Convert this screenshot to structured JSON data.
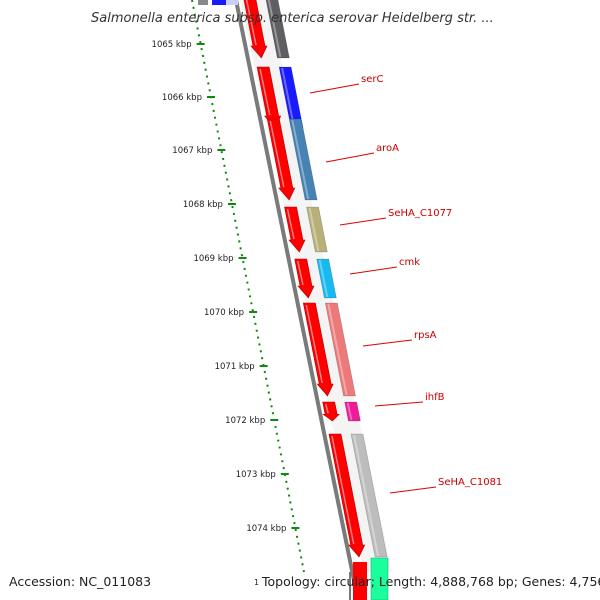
{
  "title": "Salmonella enterica subsp. enterica serovar Heidelberg str. ...",
  "footer": {
    "accession": "Accession: NC_011083",
    "marker": "1",
    "summary": "Topology: circular; Length: 4,888,768 bp; Genes: 4,756"
  },
  "ticks": [
    "1065 kbp",
    "1066 kbp",
    "1067 kbp",
    "1068 kbp",
    "1069 kbp",
    "1070 kbp",
    "1071 kbp",
    "1072 kbp",
    "1073 kbp",
    "1074 kbp"
  ],
  "genes": [
    {
      "id": "top",
      "label": "",
      "color": "#5f5f63"
    },
    {
      "id": "serC",
      "label": "serC",
      "color": "#1a1aff"
    },
    {
      "id": "aroA",
      "label": "aroA",
      "color": "#4682b4"
    },
    {
      "id": "c1077",
      "label": "SeHA_C1077",
      "color": "#b8b078"
    },
    {
      "id": "cmk",
      "label": "cmk",
      "color": "#17b9f0"
    },
    {
      "id": "rpsA",
      "label": "rpsA",
      "color": "#ec7a7a"
    },
    {
      "id": "ihfB",
      "label": "ihfB",
      "color": "#ee1a9a"
    },
    {
      "id": "c1081",
      "label": "SeHA_C1081",
      "color": "#bdbdbd"
    },
    {
      "id": "bottom",
      "label": "",
      "color": "#1aff9c"
    }
  ],
  "colors": {
    "cds_strand": "#ff0000",
    "tick_mark": "#118811",
    "label_line": "#dd0000",
    "backbone": "#777777"
  }
}
